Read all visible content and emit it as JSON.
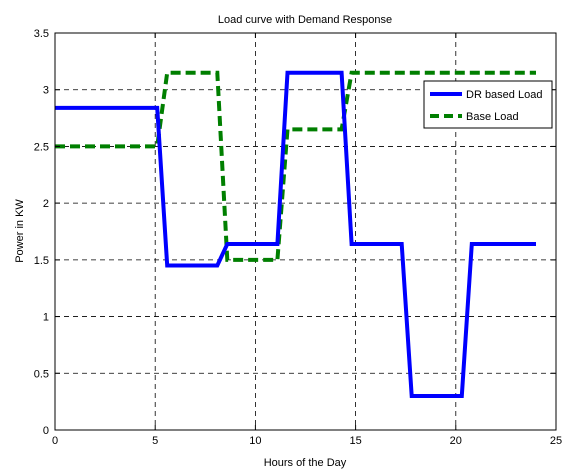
{
  "chart_data": {
    "type": "line",
    "title": "Load curve with Demand Response",
    "xlabel": "Hours of the Day",
    "ylabel": "Power in KW",
    "xlim": [
      0,
      25
    ],
    "ylim": [
      0,
      3.5
    ],
    "xticks": [
      0,
      5,
      10,
      15,
      20,
      25
    ],
    "yticks": [
      0,
      0.5,
      1,
      1.5,
      2,
      2.5,
      3,
      3.5
    ],
    "xtick_labels": [
      "0",
      "5",
      "10",
      "15",
      "20",
      "25"
    ],
    "ytick_labels": [
      "0",
      "0.5",
      "1",
      "1.5",
      "2",
      "2.5",
      "3",
      "3.5"
    ],
    "grid": true,
    "legend_position": "top-right",
    "series": [
      {
        "name": "DR based Load",
        "color": "#0000ff",
        "style": "solid",
        "x": [
          0,
          5.1,
          5.6,
          8.1,
          8.6,
          11.1,
          11.6,
          14.3,
          14.8,
          17.3,
          17.8,
          20.3,
          20.8,
          24
        ],
        "y": [
          2.84,
          2.84,
          1.45,
          1.45,
          1.64,
          1.64,
          3.15,
          3.15,
          1.64,
          1.64,
          0.3,
          0.3,
          1.64,
          1.64
        ]
      },
      {
        "name": "Base Load",
        "color": "#007f00",
        "style": "dashed",
        "x": [
          0,
          5.1,
          5.6,
          8.1,
          8.6,
          11.1,
          11.6,
          14.3,
          14.8,
          24
        ],
        "y": [
          2.5,
          2.5,
          3.15,
          3.15,
          1.5,
          1.5,
          2.65,
          2.65,
          3.15,
          3.15
        ]
      }
    ]
  }
}
